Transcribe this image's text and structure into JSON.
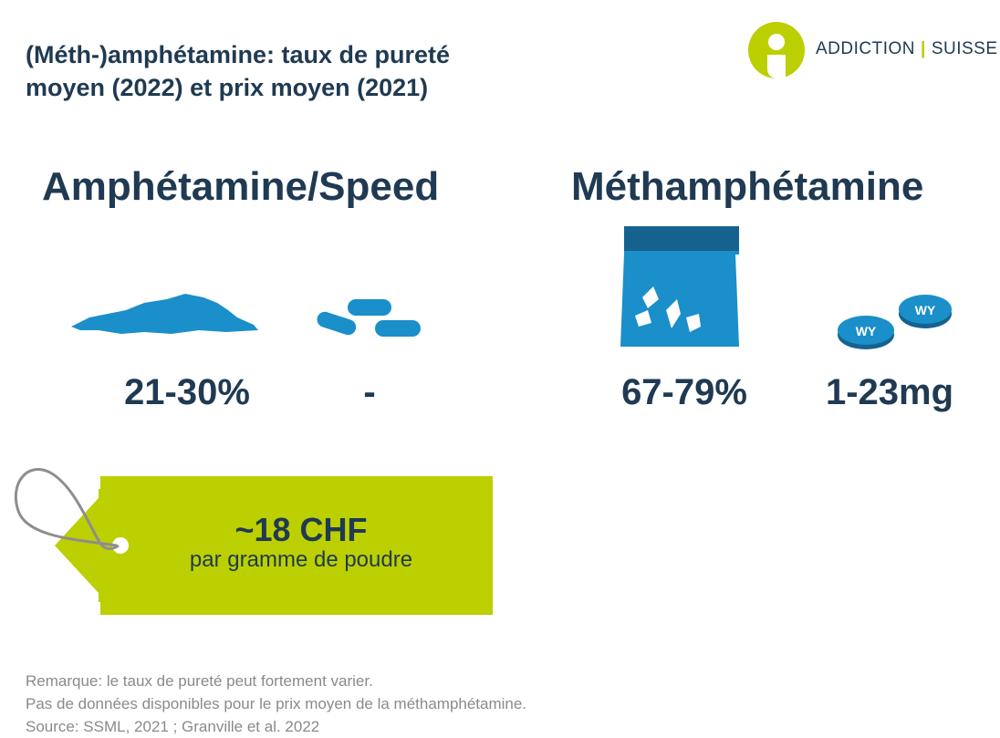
{
  "title": {
    "line1": "(Méth-)amphétamine: taux de pureté",
    "line2": "moyen (2022) et prix moyen (2021)"
  },
  "logo": {
    "left": "ADDICTION",
    "right": "SUISSE"
  },
  "colors": {
    "navy": "#1f3a52",
    "blue": "#1a8fc9",
    "lime": "#bccf00",
    "gray": "#8a8a8a"
  },
  "sections": {
    "amphetamine": {
      "heading": "Amphétamine/Speed",
      "powder_icon": "powder-pile-icon",
      "pills_icon": "capsules-icon",
      "purity_powder": "21-30%",
      "purity_pills": "-"
    },
    "methamphetamine": {
      "heading": "Méthamphétamine",
      "bag_icon": "crystal-bag-icon",
      "tablet_icon": "tablets-icon",
      "tablet_marking": "WY",
      "purity": "67-79%",
      "dose": "1-23mg"
    }
  },
  "price_tag": {
    "price": "~18 CHF",
    "unit": "par gramme de poudre"
  },
  "notes": [
    "Remarque: le taux de pureté peut fortement varier.",
    "Pas de données disponibles pour le prix moyen de la méthamphétamine.",
    "Source: SSML, 2021 ; Granville et al. 2022"
  ]
}
